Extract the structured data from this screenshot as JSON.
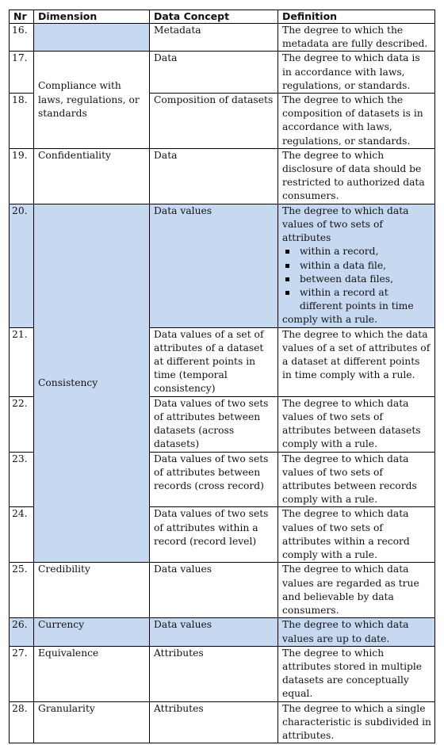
{
  "headers": {
    "nr": "Nr",
    "dimension": "Dimension",
    "concept": "Data Concept",
    "definition": "Definition"
  },
  "rows": {
    "r16": {
      "nr": "16.",
      "concept": "Metadata",
      "def": "The degree to which the metadata are fully described."
    },
    "r17": {
      "nr": "17.",
      "concept": "Data",
      "def": "The degree to which data is in accordance with laws, regulations, or standards."
    },
    "r18": {
      "nr": "18.",
      "concept": "Composition of datasets",
      "def": "The degree to which the composition of datasets is in accordance with laws, regulations, or standards."
    },
    "r19": {
      "nr": "19.",
      "dim": "Confidentiality",
      "concept": "Data",
      "def": "The degree to which disclosure of data should be restricted to authorized data consumers."
    },
    "r20": {
      "nr": "20.",
      "concept": "Data values",
      "def_intro": "The degree to which data values of two sets of attributes",
      "bullets": [
        "within a record,",
        "within a data file,",
        "between data files,",
        "within a record at different points in time"
      ],
      "def_outro": "comply with a rule."
    },
    "r21": {
      "nr": "21.",
      "concept": "Data values of a set of attributes of a dataset at different points in time (temporal consistency)",
      "def": "The degree to which the data values of a set of attributes of a dataset at different points in time comply with a rule."
    },
    "r22": {
      "nr": "22.",
      "concept": "Data values of two sets of attributes between datasets (across datasets)",
      "def": "The degree to which data values of two sets of attributes between datasets comply with a rule."
    },
    "r23": {
      "nr": "23.",
      "concept": "Data values of two sets of attributes between records (cross record)",
      "def": "The degree to which data values of two sets of attributes between records comply with a rule."
    },
    "r24": {
      "nr": "24.",
      "concept": "Data values of two sets of attributes within a record (record level)",
      "def": "The degree to which data values of two sets of attributes within a record comply with a rule."
    },
    "r25": {
      "nr": "25.",
      "dim": "Credibility",
      "concept": "Data values",
      "def": "The degree to which data values are regarded as true and believable by data consumers."
    },
    "r26": {
      "nr": "26.",
      "dim": "Currency",
      "concept": "Data values",
      "def": "The degree to which data values are up to date."
    },
    "r27": {
      "nr": "27.",
      "dim": "Equivalence",
      "concept": "Attributes",
      "def": "The degree to which attributes stored in multiple datasets are conceptually equal."
    },
    "r28": {
      "nr": "28.",
      "dim": "Granularity",
      "concept": "Attributes",
      "def": "The degree to which a single characteristic is subdivided in attributes."
    }
  },
  "dims": {
    "compliance": "Compliance with laws, regulations, or standards",
    "consistency": "Consistency"
  },
  "colors": {
    "highlight": "#c6d9f1",
    "border": "#000000"
  }
}
